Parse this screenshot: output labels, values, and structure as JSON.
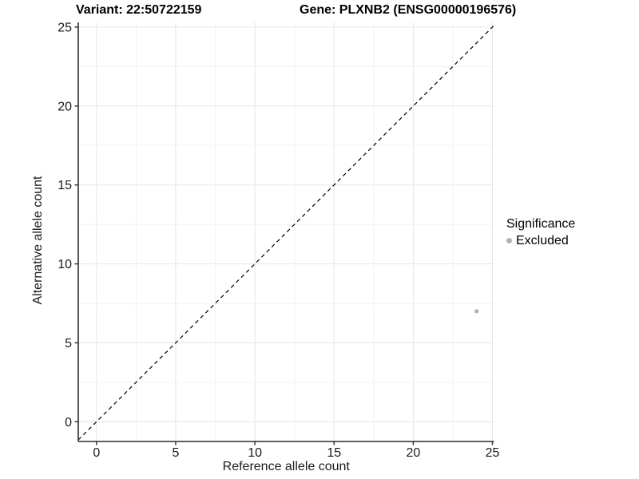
{
  "header": {
    "variant_title": "Variant: 22:50722159",
    "gene_title": "Gene: PLXNB2 (ENSG00000196576)"
  },
  "chart_data": {
    "type": "scatter",
    "xlabel": "Reference allele count",
    "ylabel": "Alternative allele count",
    "x_ticks": [
      0,
      5,
      10,
      15,
      20,
      25
    ],
    "y_ticks": [
      0,
      5,
      10,
      15,
      20,
      25
    ],
    "minor_x": [
      2.5,
      7.5,
      12.5,
      17.5,
      22.5
    ],
    "minor_y": [
      2.5,
      7.5,
      12.5,
      17.5,
      22.5
    ],
    "xlim": [
      -1.15,
      25.1
    ],
    "ylim": [
      -1.25,
      25.3
    ],
    "grid": true,
    "reference_line": {
      "slope": 1,
      "intercept": 0,
      "style": "dashed",
      "color": "#000000"
    },
    "series": [
      {
        "name": "Excluded",
        "color": "#b3b3b3",
        "points": [
          {
            "x": 24,
            "y": 7
          }
        ]
      }
    ],
    "legend": {
      "title": "Significance",
      "position": "right",
      "items": [
        {
          "label": "Excluded",
          "color": "#b3b3b3"
        }
      ]
    },
    "colors": {
      "axis_line": "#2b2b2b",
      "tick_mark": "#2b2b2b",
      "tick_label": "#1a1a1a",
      "grid_major": "#e6e6e6",
      "grid_minor": "#f2f2f2",
      "background": "#ffffff"
    }
  }
}
